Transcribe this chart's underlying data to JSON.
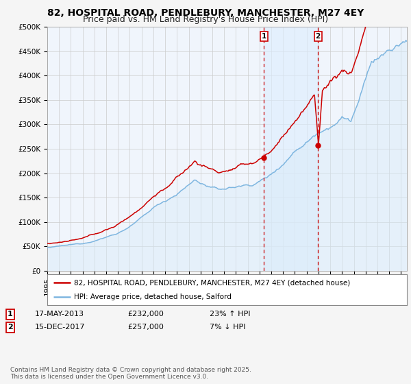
{
  "title": "82, HOSPITAL ROAD, PENDLEBURY, MANCHESTER, M27 4EY",
  "subtitle": "Price paid vs. HM Land Registry's House Price Index (HPI)",
  "ylabel_ticks": [
    "£0",
    "£50K",
    "£100K",
    "£150K",
    "£200K",
    "£250K",
    "£300K",
    "£350K",
    "£400K",
    "£450K",
    "£500K"
  ],
  "ytick_values": [
    0,
    50000,
    100000,
    150000,
    200000,
    250000,
    300000,
    350000,
    400000,
    450000,
    500000
  ],
  "ylim": [
    0,
    500000
  ],
  "xlim_start": 1995.0,
  "xlim_end": 2025.5,
  "hpi_color": "#7eb6e0",
  "hpi_fill_color": "#d8eaf8",
  "price_color": "#cc0000",
  "shade_color": "#ddeeff",
  "sale1_date": 2013.37,
  "sale1_price": 232000,
  "sale2_date": 2017.96,
  "sale2_price": 257000,
  "sale1_label": "17-MAY-2013",
  "sale2_label": "15-DEC-2017",
  "sale1_pct": "23% ↑ HPI",
  "sale2_pct": "7% ↓ HPI",
  "legend_price_label": "82, HOSPITAL ROAD, PENDLEBURY, MANCHESTER, M27 4EY (detached house)",
  "legend_hpi_label": "HPI: Average price, detached house, Salford",
  "footnote": "Contains HM Land Registry data © Crown copyright and database right 2025.\nThis data is licensed under the Open Government Licence v3.0.",
  "plot_bg_color": "#f0f5fc",
  "fig_bg_color": "#f5f5f5",
  "grid_color": "#cccccc",
  "title_fontsize": 10,
  "subtitle_fontsize": 9,
  "tick_fontsize": 7.5,
  "legend_fontsize": 7.5,
  "footnote_fontsize": 6.5
}
